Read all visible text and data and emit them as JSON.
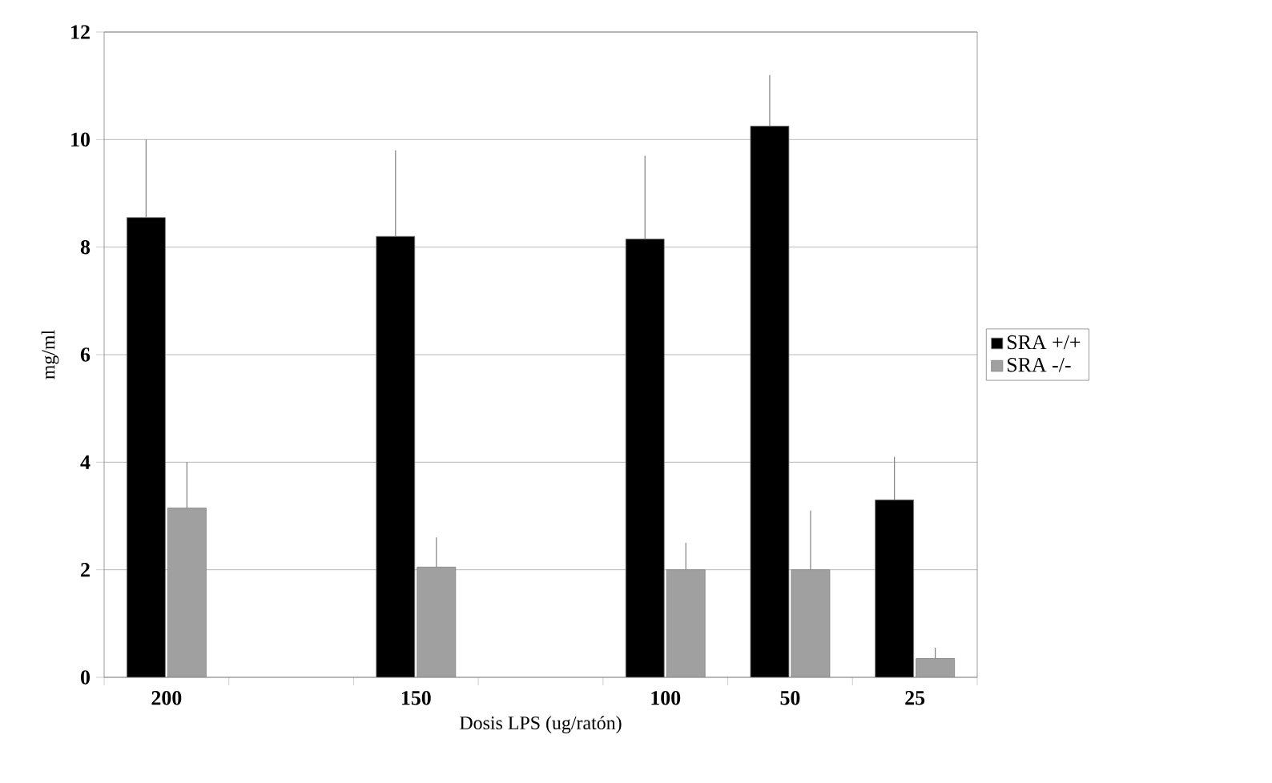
{
  "chart_data": {
    "type": "bar",
    "xlabel": "Dosis LPS (ug/ratón)",
    "ylabel": "mg/ml",
    "categories": [
      "200",
      null,
      "150",
      null,
      "100",
      "50",
      "25"
    ],
    "series": [
      {
        "name": "SRA +/+",
        "color": "#000000",
        "values": [
          8.55,
          null,
          8.2,
          null,
          8.15,
          10.25,
          3.3
        ],
        "errors": [
          [
            8.55,
            10.0
          ],
          null,
          [
            8.2,
            9.8
          ],
          null,
          [
            8.15,
            9.7
          ],
          [
            10.25,
            11.2
          ],
          [
            3.3,
            4.1
          ]
        ]
      },
      {
        "name": "SRA -/-",
        "color": "#a0a0a0",
        "values": [
          3.15,
          null,
          2.05,
          null,
          2.0,
          2.0,
          0.35
        ],
        "errors": [
          [
            3.15,
            4.0
          ],
          null,
          [
            2.05,
            2.6
          ],
          null,
          [
            2.0,
            2.5
          ],
          [
            2.0,
            3.1
          ],
          [
            0.35,
            0.55
          ]
        ]
      }
    ],
    "ylim": [
      0,
      12
    ],
    "yticks": [
      0,
      2,
      4,
      6,
      8,
      10,
      12
    ],
    "grid": "y",
    "legend": "right"
  }
}
